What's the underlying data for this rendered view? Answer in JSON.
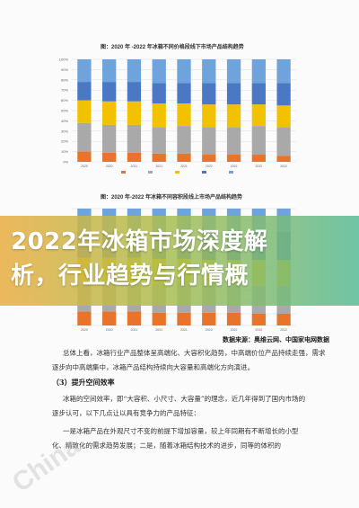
{
  "figure1": {
    "title": "图：2020 年 -2022 年冰箱不同价格段线下市场产品结构趋势"
  },
  "figure2": {
    "title": "图：2020 年-2022 年冰箱不同容积段线上市场产品结构趋势"
  },
  "headline": {
    "line1": "2022年冰箱市场深度解",
    "line2": "析，行业趋势与行情概"
  },
  "source_label": "数据来源：奥维云网、中国家电网数据",
  "article": {
    "para1_line1": "总体上看，冰箱行业产品整体呈高端化、大容积化趋势，中高端价位产品持续走强，需求",
    "para1_line2": "逐步向中高端集中，冰箱产品结构持续向大容量和高端化方向演进。",
    "section_heading": "（3）提升空间效率",
    "para2_line1": "冰箱的空间效率，即“大容积、小尺寸、大容量”的理念，近几年得到了国内市场的",
    "para2_line2": "逐步认可，以下几点让以具有竞争力的产品特征：",
    "para3_line1": "一是冰箱产品在外观尺寸不变的前提下增加容量，较上年同期有不断增长的小型",
    "para3_line2": "化、精致化的需求趋势发展；二是，随着冰箱结构技术的进步，同等的体积的"
  },
  "watermark": "China",
  "chart_data": [
    {
      "type": "bar",
      "stacked": true,
      "title": "图：2020 年 -2022 年冰箱不同价格段线下市场产品结构趋势",
      "categories": [
        "2020",
        "2020",
        "2021",
        "2021",
        "2021",
        "2022",
        "2022",
        "2022",
        "2022"
      ],
      "ylim": [
        0,
        100
      ],
      "ytick_labels": [
        "0%",
        "10%",
        "20%",
        "30%",
        "40%",
        "50%",
        "60%",
        "70%",
        "80%",
        "90%",
        "100%"
      ],
      "grid": true,
      "legend_placement": "bottom",
      "series": [
        {
          "color": "#e8742c",
          "values": [
            10,
            9,
            9,
            8,
            8,
            7,
            7,
            7,
            6
          ]
        },
        {
          "color": "#a9a9a9",
          "values": [
            28,
            27,
            27,
            26,
            27,
            27,
            27,
            28,
            28
          ]
        },
        {
          "color": "#f2c200",
          "values": [
            22,
            23,
            23,
            23,
            22,
            22,
            22,
            21,
            21
          ]
        },
        {
          "color": "#4a78c4",
          "values": [
            18,
            19,
            19,
            20,
            20,
            21,
            21,
            21,
            22
          ]
        },
        {
          "color": "#6fa3dc",
          "values": [
            22,
            22,
            22,
            23,
            23,
            23,
            23,
            23,
            23
          ]
        }
      ]
    },
    {
      "type": "bar",
      "stacked": true,
      "title": "图：2020 年-2022 年冰箱不同容积段线上市场产品结构趋势",
      "categories": [
        "2020",
        "2020",
        "2021",
        "2021",
        "2021",
        "2022",
        "2022",
        "2022",
        "2022"
      ],
      "ylim": [
        0,
        100
      ],
      "grid": true,
      "series": [
        {
          "color": "#e8742c",
          "values": [
            12,
            12,
            12,
            11,
            11,
            11,
            11,
            10,
            10
          ]
        },
        {
          "color": "#a9a9a9",
          "values": [
            26,
            26,
            25,
            25,
            25,
            24,
            24,
            24,
            24
          ]
        },
        {
          "color": "#f2c200",
          "values": [
            20,
            20,
            21,
            21,
            21,
            21,
            21,
            22,
            22
          ]
        },
        {
          "color": "#4a78c4",
          "values": [
            22,
            22,
            22,
            23,
            23,
            24,
            24,
            24,
            24
          ]
        },
        {
          "color": "#6fa3dc",
          "values": [
            20,
            20,
            20,
            20,
            20,
            20,
            20,
            20,
            20
          ]
        }
      ]
    }
  ]
}
